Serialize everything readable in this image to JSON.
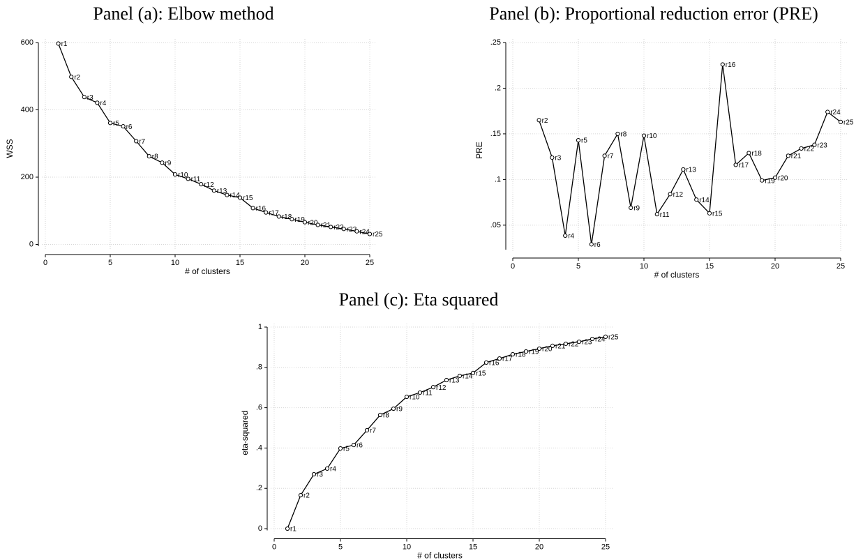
{
  "chart_data": [
    {
      "type": "line",
      "title": "Panel (a): Elbow method",
      "xlabel": "# of clusters",
      "ylabel": "WSS",
      "x": [
        1,
        2,
        3,
        4,
        5,
        6,
        7,
        8,
        9,
        10,
        11,
        12,
        13,
        14,
        15,
        16,
        17,
        18,
        19,
        20,
        21,
        22,
        23,
        24,
        25
      ],
      "values": [
        597,
        498,
        438,
        421,
        361,
        351,
        307,
        262,
        243,
        208,
        195,
        179,
        160,
        147,
        139,
        108,
        95,
        83,
        75,
        66,
        58,
        52,
        46,
        39,
        31
      ],
      "point_labels": [
        "r1",
        "r2",
        "r3",
        "r4",
        "r5",
        "r6",
        "r7",
        "r8",
        "r9",
        "r10",
        "r11",
        "r12",
        "r13",
        "r14",
        "r15",
        "r16",
        "r17",
        "r18",
        "r19",
        "r20",
        "r21",
        "r22",
        "r23",
        "r24",
        "r25"
      ],
      "xlim": [
        0,
        25
      ],
      "ylim": [
        -30,
        600
      ],
      "xticks": [
        0,
        5,
        10,
        15,
        20,
        25
      ],
      "yticks": [
        0,
        200,
        400,
        600
      ],
      "grid": true,
      "color": "#000000",
      "marker": "open-circle"
    },
    {
      "type": "line",
      "title": "Panel (b): Proportional reduction error (PRE)",
      "xlabel": "# of clusters",
      "ylabel": "PRE",
      "x": [
        2,
        3,
        4,
        5,
        6,
        7,
        8,
        9,
        10,
        11,
        12,
        13,
        14,
        15,
        16,
        17,
        18,
        19,
        20,
        21,
        22,
        23,
        24,
        25
      ],
      "values": [
        0.165,
        0.124,
        0.0385,
        0.143,
        0.029,
        0.126,
        0.15,
        0.069,
        0.148,
        0.062,
        0.084,
        0.111,
        0.078,
        0.063,
        0.226,
        0.116,
        0.129,
        0.099,
        0.102,
        0.126,
        0.134,
        0.138,
        0.174,
        0.163
      ],
      "point_labels": [
        "r2",
        "r3",
        "r4",
        "r5",
        "r6",
        "r7",
        "r8",
        "r9",
        "r10",
        "r11",
        "r12",
        "r13",
        "r14",
        "r15",
        "r16",
        "r17",
        "r18",
        "r19",
        "r20",
        "r21",
        "r22",
        "r23",
        "r24",
        "r25"
      ],
      "xlim": [
        0,
        25
      ],
      "ylim": [
        0.014,
        0.25
      ],
      "xticks": [
        0,
        5,
        10,
        15,
        20,
        25
      ],
      "yticks": [
        {
          "value": 0.05,
          "label": ".05"
        },
        {
          "value": 0.1,
          "label": ".1"
        },
        {
          "value": 0.15,
          "label": ".15"
        },
        {
          "value": 0.2,
          "label": ".2"
        },
        {
          "value": 0.25,
          "label": ".25"
        }
      ],
      "grid": true,
      "color": "#000000",
      "marker": "open-circle"
    },
    {
      "type": "line",
      "title": "Panel (c): Eta squared",
      "xlabel": "# of clusters",
      "ylabel": "eta-squared",
      "x": [
        1,
        2,
        3,
        4,
        5,
        6,
        7,
        8,
        9,
        10,
        11,
        12,
        13,
        14,
        15,
        16,
        17,
        18,
        19,
        20,
        21,
        22,
        23,
        24,
        25
      ],
      "values": [
        0,
        0.166,
        0.27,
        0.298,
        0.398,
        0.415,
        0.488,
        0.564,
        0.595,
        0.654,
        0.675,
        0.702,
        0.737,
        0.758,
        0.772,
        0.824,
        0.844,
        0.865,
        0.879,
        0.893,
        0.907,
        0.917,
        0.927,
        0.941,
        0.952
      ],
      "point_labels": [
        "r1",
        "r2",
        "r3",
        "r4",
        "r5",
        "r6",
        "r7",
        "r8",
        "r9",
        "r10",
        "r11",
        "r12",
        "r13",
        "r14",
        "r15",
        "r16",
        "r17",
        "r18",
        "r19",
        "r20",
        "r21",
        "r22",
        "r23",
        "r24",
        "r25"
      ],
      "xlim": [
        0,
        25
      ],
      "ylim": [
        -0.05,
        1
      ],
      "xticks": [
        0,
        5,
        10,
        15,
        20,
        25
      ],
      "yticks": [
        0,
        {
          "value": 0.2,
          "label": ".2"
        },
        {
          "value": 0.4,
          "label": ".4"
        },
        {
          "value": 0.6,
          "label": ".6"
        },
        {
          "value": 0.8,
          "label": ".8"
        },
        1
      ],
      "grid": true,
      "color": "#000000",
      "marker": "open-circle"
    }
  ]
}
